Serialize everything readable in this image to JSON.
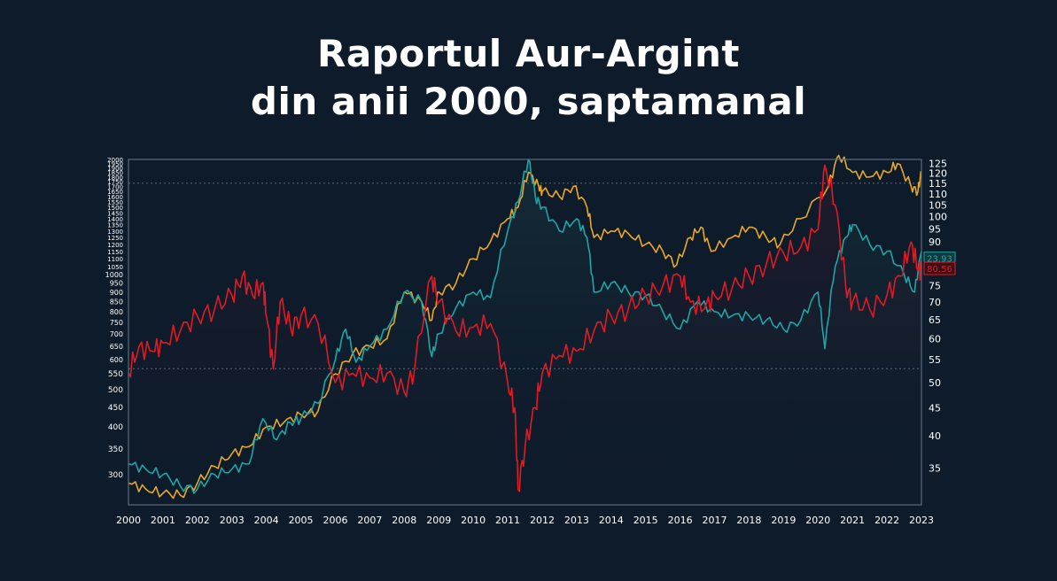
{
  "title_line1": "Raportul Aur-Argint",
  "title_line2": "din anii 2000, saptamanal",
  "chart_data": {
    "type": "line",
    "title": "Raportul Aur-Argint din anii 2000, saptamanal",
    "x_ticks": [
      "2000",
      "2001",
      "2002",
      "2003",
      "2004",
      "2005",
      "2006",
      "2007",
      "2008",
      "2009",
      "2010",
      "2011",
      "2012",
      "2013",
      "2014",
      "2015",
      "2016",
      "2017",
      "2018",
      "2019",
      "2020",
      "2021",
      "2022",
      "2023"
    ],
    "xlim": [
      2000,
      2023
    ],
    "y_left": {
      "scale": "log",
      "ylim": [
        250,
        2000
      ],
      "ticks": [
        300,
        350,
        400,
        450,
        500,
        550,
        600,
        650,
        700,
        750,
        800,
        850,
        900,
        950,
        1000,
        1050,
        1100,
        1150,
        1200,
        1250,
        1300,
        1350,
        1400,
        1450,
        1500,
        1550,
        1600,
        1650,
        1700,
        1750,
        1800,
        1850,
        1900,
        1950,
        2000
      ]
    },
    "y_right": {
      "scale": "log",
      "ylim": [
        30,
        127
      ],
      "ticks": [
        35,
        40,
        45,
        50,
        55,
        60,
        65,
        70,
        75,
        80,
        85,
        90,
        95,
        100,
        105,
        110,
        115,
        120,
        125
      ]
    },
    "reference_lines_right": [
      115,
      53
    ],
    "last_value_labels": {
      "teal": "23.93",
      "red": "80.56"
    },
    "colors": {
      "background": "#0e1b2b",
      "gold": "#e8a825",
      "teal": "#1fa5a5",
      "red": "#e01b24",
      "axis": "#5a6b7c"
    },
    "series": [
      {
        "color": "gold",
        "axis": "left",
        "points": [
          [
            2000,
            285
          ],
          [
            2000.5,
            275
          ],
          [
            2001,
            268
          ],
          [
            2001.5,
            265
          ],
          [
            2002,
            285
          ],
          [
            2002.5,
            315
          ],
          [
            2003,
            340
          ],
          [
            2003.5,
            355
          ],
          [
            2004,
            400
          ],
          [
            2004.5,
            410
          ],
          [
            2005,
            430
          ],
          [
            2005.5,
            440
          ],
          [
            2006,
            550
          ],
          [
            2006.5,
            620
          ],
          [
            2007,
            650
          ],
          [
            2007.5,
            680
          ],
          [
            2008,
            900
          ],
          [
            2008.5,
            850
          ],
          [
            2008.8,
            760
          ],
          [
            2009,
            900
          ],
          [
            2009.5,
            950
          ],
          [
            2010,
            1100
          ],
          [
            2010.5,
            1220
          ],
          [
            2011,
            1400
          ],
          [
            2011.3,
            1500
          ],
          [
            2011.6,
            1850
          ],
          [
            2011.9,
            1700
          ],
          [
            2012,
            1650
          ],
          [
            2012.5,
            1600
          ],
          [
            2012.9,
            1700
          ],
          [
            2013.3,
            1500
          ],
          [
            2013.5,
            1250
          ],
          [
            2014,
            1300
          ],
          [
            2014.5,
            1280
          ],
          [
            2015,
            1200
          ],
          [
            2015.5,
            1150
          ],
          [
            2015.9,
            1060
          ],
          [
            2016.3,
            1250
          ],
          [
            2016.6,
            1330
          ],
          [
            2016.9,
            1150
          ],
          [
            2017.5,
            1250
          ],
          [
            2018,
            1330
          ],
          [
            2018.5,
            1250
          ],
          [
            2018.9,
            1200
          ],
          [
            2019.5,
            1400
          ],
          [
            2020.3,
            1700
          ],
          [
            2020.6,
            2050
          ],
          [
            2021,
            1850
          ],
          [
            2021.5,
            1800
          ],
          [
            2022,
            1850
          ],
          [
            2022.3,
            1950
          ],
          [
            2022.7,
            1700
          ],
          [
            2022.9,
            1650
          ],
          [
            2023,
            1850
          ]
        ]
      },
      {
        "color": "teal",
        "axis": "left",
        "points": [
          [
            2000,
            320
          ],
          [
            2000.5,
            310
          ],
          [
            2001,
            300
          ],
          [
            2001.5,
            280
          ],
          [
            2002,
            275
          ],
          [
            2002.5,
            300
          ],
          [
            2003,
            310
          ],
          [
            2003.5,
            320
          ],
          [
            2003.9,
            420
          ],
          [
            2004.3,
            370
          ],
          [
            2004.7,
            410
          ],
          [
            2005,
            420
          ],
          [
            2005.5,
            460
          ],
          [
            2006,
            600
          ],
          [
            2006.3,
            720
          ],
          [
            2006.6,
            590
          ],
          [
            2007,
            650
          ],
          [
            2007.5,
            720
          ],
          [
            2008,
            900
          ],
          [
            2008.5,
            850
          ],
          [
            2008.8,
            610
          ],
          [
            2009,
            700
          ],
          [
            2009.5,
            820
          ],
          [
            2010,
            900
          ],
          [
            2010.5,
            870
          ],
          [
            2011,
            1300
          ],
          [
            2011.3,
            1550
          ],
          [
            2011.6,
            2000
          ],
          [
            2011.8,
            1600
          ],
          [
            2012,
            1500
          ],
          [
            2012.5,
            1300
          ],
          [
            2013,
            1400
          ],
          [
            2013.3,
            1250
          ],
          [
            2013.5,
            900
          ],
          [
            2014,
            950
          ],
          [
            2014.5,
            900
          ],
          [
            2015,
            880
          ],
          [
            2015.5,
            800
          ],
          [
            2016,
            720
          ],
          [
            2016.5,
            850
          ],
          [
            2017,
            800
          ],
          [
            2017.5,
            780
          ],
          [
            2018,
            780
          ],
          [
            2018.5,
            760
          ],
          [
            2019,
            720
          ],
          [
            2019.5,
            760
          ],
          [
            2020,
            900
          ],
          [
            2020.2,
            640
          ],
          [
            2020.5,
            1050
          ],
          [
            2020.8,
            1250
          ],
          [
            2021,
            1350
          ],
          [
            2021.5,
            1200
          ],
          [
            2022,
            1150
          ],
          [
            2022.5,
            1000
          ],
          [
            2022.8,
            900
          ],
          [
            2023,
            1150
          ]
        ]
      },
      {
        "color": "red",
        "axis": "right",
        "points": [
          [
            2000,
            52
          ],
          [
            2000.3,
            58
          ],
          [
            2000.7,
            57
          ],
          [
            2001,
            59
          ],
          [
            2001.5,
            62
          ],
          [
            2002,
            66
          ],
          [
            2002.5,
            68
          ],
          [
            2003,
            72
          ],
          [
            2003.3,
            78
          ],
          [
            2003.6,
            72
          ],
          [
            2003.9,
            76
          ],
          [
            2004,
            66
          ],
          [
            2004.2,
            53
          ],
          [
            2004.4,
            70
          ],
          [
            2004.7,
            63
          ],
          [
            2005,
            66
          ],
          [
            2005.5,
            64
          ],
          [
            2006,
            50
          ],
          [
            2006.5,
            52
          ],
          [
            2007,
            51
          ],
          [
            2007.5,
            52
          ],
          [
            2008,
            48
          ],
          [
            2008.3,
            53
          ],
          [
            2008.8,
            78
          ],
          [
            2009,
            70
          ],
          [
            2009.5,
            62
          ],
          [
            2010,
            63
          ],
          [
            2010.5,
            64
          ],
          [
            2011,
            50
          ],
          [
            2011.2,
            45
          ],
          [
            2011.3,
            32
          ],
          [
            2011.5,
            38
          ],
          [
            2011.8,
            45
          ],
          [
            2012,
            52
          ],
          [
            2012.5,
            56
          ],
          [
            2013,
            57
          ],
          [
            2013.5,
            62
          ],
          [
            2014,
            66
          ],
          [
            2014.5,
            68
          ],
          [
            2015,
            72
          ],
          [
            2015.5,
            75
          ],
          [
            2016,
            78
          ],
          [
            2016.3,
            70
          ],
          [
            2016.7,
            68
          ],
          [
            2017,
            72
          ],
          [
            2017.5,
            74
          ],
          [
            2018,
            78
          ],
          [
            2018.5,
            82
          ],
          [
            2019,
            86
          ],
          [
            2019.5,
            88
          ],
          [
            2020,
            95
          ],
          [
            2020.2,
            124
          ],
          [
            2020.5,
            105
          ],
          [
            2020.8,
            75
          ],
          [
            2021,
            70
          ],
          [
            2021.5,
            68
          ],
          [
            2022,
            72
          ],
          [
            2022.4,
            78
          ],
          [
            2022.7,
            90
          ],
          [
            2022.9,
            80
          ],
          [
            2023,
            80.56
          ]
        ]
      }
    ]
  }
}
